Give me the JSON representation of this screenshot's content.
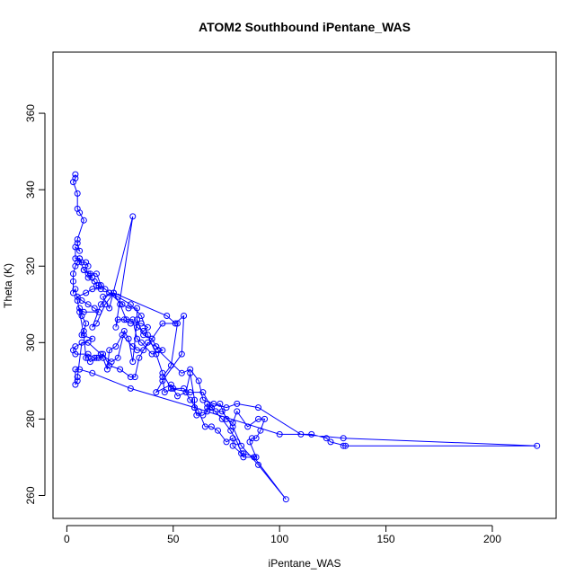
{
  "chart_data": {
    "type": "line",
    "title": "ATOM2 Southbound iPentane_WAS",
    "xlabel": "iPentane_WAS",
    "ylabel": "Theta (K)",
    "xlim": [
      -6.5,
      230
    ],
    "ylim": [
      254,
      376
    ],
    "xticks": [
      0,
      50,
      100,
      150,
      200
    ],
    "yticks": [
      260,
      280,
      300,
      320,
      340,
      360
    ],
    "grid": false,
    "legend": "none",
    "marker": "open-circle",
    "color": "#0000ff",
    "series": [
      {
        "points": [
          [
            4,
            344
          ],
          [
            4,
            343
          ],
          [
            3,
            342
          ],
          [
            5,
            339
          ],
          [
            5,
            335
          ],
          [
            6,
            334
          ],
          [
            8,
            332
          ],
          [
            5,
            327
          ],
          [
            5,
            326
          ],
          [
            6,
            324
          ],
          [
            4,
            325
          ],
          [
            4,
            322
          ],
          [
            6,
            322
          ],
          [
            7,
            321
          ],
          [
            9,
            321
          ],
          [
            10,
            320
          ],
          [
            8,
            319
          ],
          [
            11,
            318
          ],
          [
            12,
            317
          ],
          [
            10,
            317
          ],
          [
            13,
            316
          ],
          [
            14,
            315
          ],
          [
            15,
            315
          ],
          [
            16,
            314
          ],
          [
            12,
            314
          ],
          [
            9,
            313
          ],
          [
            5,
            312
          ],
          [
            7,
            311
          ],
          [
            10,
            310
          ],
          [
            13,
            309
          ],
          [
            15,
            308
          ],
          [
            8,
            308
          ],
          [
            6,
            309
          ],
          [
            7,
            307
          ],
          [
            9,
            305
          ],
          [
            8,
            303
          ],
          [
            7,
            302
          ],
          [
            12,
            301
          ],
          [
            4,
            299
          ],
          [
            3,
            298
          ],
          [
            4,
            297
          ],
          [
            10,
            297
          ],
          [
            13,
            296
          ],
          [
            15,
            296
          ],
          [
            17,
            297
          ],
          [
            20,
            294
          ],
          [
            25,
            293
          ],
          [
            30,
            291
          ],
          [
            32,
            291
          ],
          [
            34,
            296
          ],
          [
            38,
            300
          ],
          [
            42,
            299
          ],
          [
            45,
            298
          ],
          [
            40,
            297
          ],
          [
            35,
            300
          ],
          [
            33,
            301
          ],
          [
            31,
            306
          ],
          [
            28,
            306
          ],
          [
            25,
            310
          ],
          [
            22,
            313
          ],
          [
            18,
            310
          ],
          [
            14,
            305
          ],
          [
            12,
            304
          ],
          [
            16,
            310
          ],
          [
            20,
            313
          ],
          [
            26,
            310
          ],
          [
            29,
            309
          ],
          [
            33,
            309
          ],
          [
            33,
            304
          ],
          [
            36,
            303
          ],
          [
            38,
            304
          ],
          [
            35,
            305
          ],
          [
            30,
            305
          ],
          [
            27,
            306
          ],
          [
            24,
            306
          ],
          [
            23,
            304
          ],
          [
            31,
            333
          ],
          [
            20,
            309
          ],
          [
            17,
            312
          ],
          [
            22,
            313
          ],
          [
            47,
            307
          ],
          [
            51,
            305
          ],
          [
            55,
            307
          ],
          [
            54,
            297
          ],
          [
            45,
            290
          ],
          [
            42,
            287
          ],
          [
            49,
            289
          ],
          [
            52,
            286
          ],
          [
            56,
            287
          ],
          [
            58,
            292
          ],
          [
            60,
            285
          ],
          [
            60,
            283
          ],
          [
            61,
            281
          ],
          [
            64,
            281
          ],
          [
            66,
            282
          ],
          [
            66,
            284
          ],
          [
            68,
            283
          ],
          [
            72,
            284
          ],
          [
            75,
            280
          ],
          [
            78,
            279
          ],
          [
            80,
            282
          ],
          [
            85,
            278
          ],
          [
            90,
            280
          ],
          [
            93,
            280
          ],
          [
            91,
            277
          ],
          [
            89,
            275
          ],
          [
            87,
            275
          ],
          [
            86,
            274
          ],
          [
            89,
            270
          ],
          [
            83,
            271
          ],
          [
            82,
            271
          ],
          [
            78,
            273
          ],
          [
            78,
            275
          ],
          [
            75,
            274
          ],
          [
            71,
            277
          ],
          [
            68,
            278
          ],
          [
            65,
            278
          ],
          [
            62,
            282
          ],
          [
            58,
            285
          ],
          [
            55,
            288
          ],
          [
            50,
            288
          ],
          [
            46,
            287
          ],
          [
            45,
            291
          ],
          [
            49,
            294
          ],
          [
            52,
            305
          ],
          [
            45,
            305
          ],
          [
            40,
            301
          ],
          [
            36,
            302
          ],
          [
            33,
            306
          ],
          [
            31,
            295
          ],
          [
            29,
            301
          ],
          [
            27,
            303
          ],
          [
            24,
            296
          ],
          [
            21,
            295
          ],
          [
            16,
            297
          ],
          [
            10,
            300
          ],
          [
            7,
            300
          ],
          [
            5,
            291
          ],
          [
            5,
            290
          ],
          [
            4,
            289
          ],
          [
            4,
            293
          ],
          [
            6,
            293
          ],
          [
            12,
            292
          ],
          [
            30,
            288
          ],
          [
            60,
            283
          ],
          [
            100,
            276
          ],
          [
            115,
            276
          ],
          [
            122,
            275
          ],
          [
            124,
            274
          ],
          [
            131,
            273
          ],
          [
            130,
            273
          ],
          [
            221,
            273
          ],
          [
            130,
            275
          ],
          [
            110,
            276
          ],
          [
            90,
            283
          ],
          [
            80,
            284
          ],
          [
            75,
            283
          ],
          [
            69,
            284
          ],
          [
            64,
            285
          ],
          [
            62,
            290
          ],
          [
            58,
            293
          ],
          [
            54,
            292
          ],
          [
            43,
            298
          ],
          [
            40,
            301
          ],
          [
            36,
            298
          ],
          [
            33,
            298
          ],
          [
            31,
            299
          ],
          [
            26,
            302
          ],
          [
            23,
            299
          ],
          [
            20,
            298
          ],
          [
            19,
            293
          ],
          [
            17,
            296
          ],
          [
            14,
            296
          ],
          [
            11,
            295
          ],
          [
            10,
            296
          ],
          [
            9,
            296
          ],
          [
            8,
            302
          ],
          [
            6,
            308
          ],
          [
            5,
            311
          ],
          [
            4,
            314
          ],
          [
            3,
            313
          ],
          [
            3,
            316
          ],
          [
            3,
            318
          ],
          [
            4,
            320
          ],
          [
            5,
            321
          ],
          [
            6,
            322
          ],
          [
            8,
            319
          ],
          [
            10,
            318
          ],
          [
            14,
            318
          ],
          [
            16,
            315
          ],
          [
            18,
            314
          ],
          [
            20,
            313
          ],
          [
            24,
            312
          ],
          [
            30,
            310
          ],
          [
            35,
            307
          ],
          [
            38,
            302
          ],
          [
            42,
            297
          ],
          [
            45,
            292
          ],
          [
            49,
            288
          ],
          [
            58,
            287
          ],
          [
            64,
            287
          ],
          [
            68,
            283
          ],
          [
            73,
            280
          ],
          [
            77,
            277
          ],
          [
            80,
            274
          ],
          [
            83,
            270
          ],
          [
            88,
            270
          ],
          [
            103,
            259
          ],
          [
            90,
            268
          ],
          [
            82,
            273
          ],
          [
            78,
            278
          ],
          [
            73,
            282
          ],
          [
            70,
            282
          ],
          [
            66,
            283
          ]
        ]
      }
    ]
  }
}
